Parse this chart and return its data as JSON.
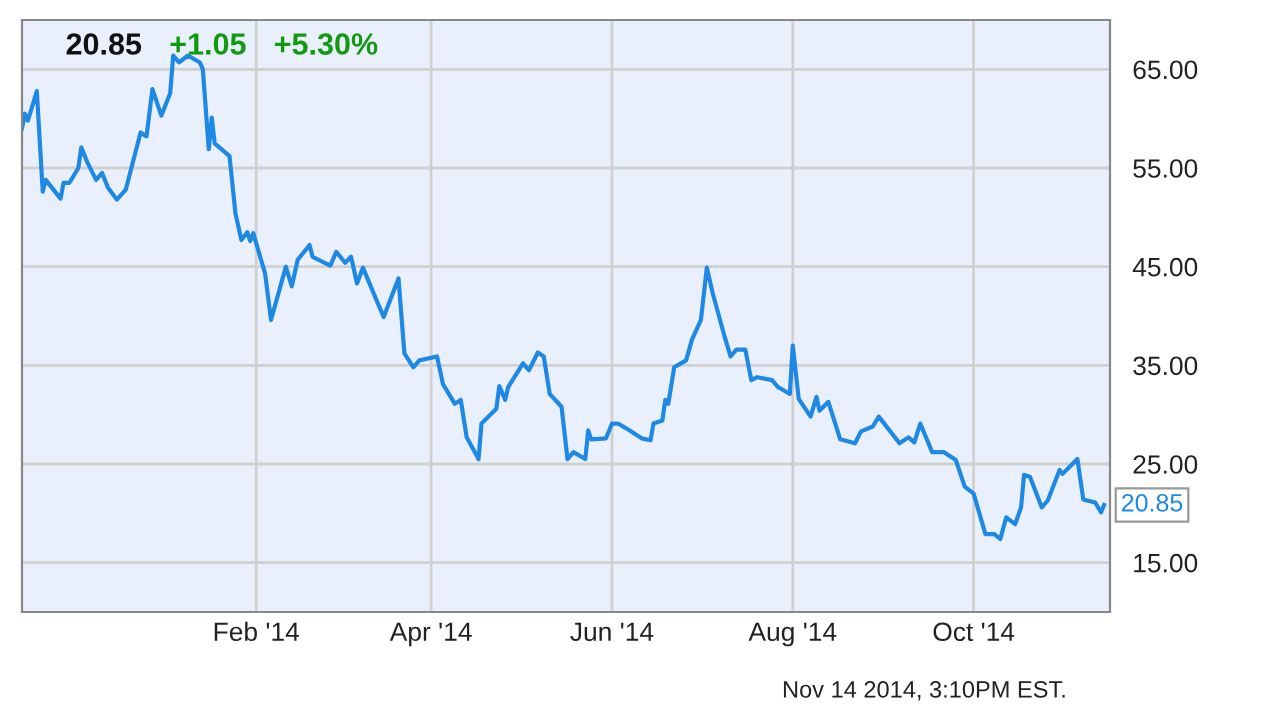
{
  "chart_data": {
    "type": "line",
    "x": [
      "2013-11-14",
      "2013-11-15",
      "2013-11-16",
      "2013-11-19",
      "2013-11-21",
      "2013-11-22",
      "2013-11-27",
      "2013-11-28",
      "2013-11-30",
      "2013-12-03",
      "2013-12-04",
      "2013-12-06",
      "2013-12-09",
      "2013-12-11",
      "2013-12-13",
      "2013-12-16",
      "2013-12-19",
      "2013-12-24",
      "2013-12-26",
      "2013-12-28",
      "2013-12-31",
      "2014-01-03",
      "2014-01-04",
      "2014-01-06",
      "2014-01-09",
      "2014-01-13",
      "2014-01-14",
      "2014-01-16",
      "2014-01-17",
      "2014-01-18",
      "2014-01-23",
      "2014-01-25",
      "2014-01-27",
      "2014-01-29",
      "2014-01-30",
      "2014-01-31",
      "2014-02-04",
      "2014-02-06",
      "2014-02-11",
      "2014-02-13",
      "2014-02-15",
      "2014-02-19",
      "2014-02-20",
      "2014-02-26",
      "2014-02-28",
      "2014-03-03",
      "2014-03-05",
      "2014-03-07",
      "2014-03-09",
      "2014-03-14",
      "2014-03-16",
      "2014-03-21",
      "2014-03-23",
      "2014-03-26",
      "2014-03-28",
      "2014-04-03",
      "2014-04-05",
      "2014-04-09",
      "2014-04-11",
      "2014-04-13",
      "2014-04-17",
      "2014-04-18",
      "2014-04-23",
      "2014-04-24",
      "2014-04-26",
      "2014-04-27",
      "2014-05-02",
      "2014-05-04",
      "2014-05-07",
      "2014-05-09",
      "2014-05-11",
      "2014-05-15",
      "2014-05-17",
      "2014-05-19",
      "2014-05-23",
      "2014-05-24",
      "2014-05-25",
      "2014-05-30",
      "2014-06-01",
      "2014-06-03",
      "2014-06-07",
      "2014-06-11",
      "2014-06-14",
      "2014-06-15",
      "2014-06-18",
      "2014-06-19",
      "2014-06-20",
      "2014-06-22",
      "2014-06-26",
      "2014-06-28",
      "2014-07-01",
      "2014-07-03",
      "2014-07-05",
      "2014-07-09",
      "2014-07-11",
      "2014-07-13",
      "2014-07-16",
      "2014-07-18",
      "2014-07-20",
      "2014-07-25",
      "2014-07-27",
      "2014-07-31",
      "2014-08-01",
      "2014-08-03",
      "2014-08-07",
      "2014-08-09",
      "2014-08-10",
      "2014-08-13",
      "2014-08-17",
      "2014-08-22",
      "2014-08-24",
      "2014-08-28",
      "2014-08-30",
      "2014-09-06",
      "2014-09-09",
      "2014-09-11",
      "2014-09-13",
      "2014-09-17",
      "2014-09-21",
      "2014-09-25",
      "2014-09-28",
      "2014-10-01",
      "2014-10-04",
      "2014-10-05",
      "2014-10-08",
      "2014-10-10",
      "2014-10-12",
      "2014-10-15",
      "2014-10-17",
      "2014-10-18",
      "2014-10-20",
      "2014-10-24",
      "2014-10-26",
      "2014-10-30",
      "2014-10-31",
      "2014-11-05",
      "2014-11-07",
      "2014-11-11",
      "2014-11-13",
      "2014-11-14"
    ],
    "series": [
      {
        "color": "#1e88e5",
        "values": [
          59.0,
          60.5,
          59.8,
          62.8,
          52.6,
          53.8,
          51.9,
          53.5,
          53.5,
          55.0,
          57.1,
          55.6,
          53.8,
          54.5,
          53.0,
          51.8,
          52.8,
          58.6,
          58.2,
          63.0,
          60.3,
          62.6,
          66.4,
          65.7,
          66.4,
          65.7,
          65.0,
          56.9,
          60.1,
          57.5,
          56.2,
          50.4,
          47.7,
          48.5,
          47.6,
          48.4,
          44.3,
          39.6,
          45.0,
          43.0,
          45.7,
          47.2,
          46.0,
          45.1,
          46.5,
          45.4,
          46.0,
          43.3,
          44.9,
          41.3,
          39.9,
          43.8,
          36.2,
          34.8,
          35.5,
          35.9,
          33.1,
          31.1,
          31.5,
          27.7,
          25.5,
          29.1,
          30.6,
          32.9,
          31.5,
          32.8,
          35.2,
          34.5,
          36.3,
          35.9,
          32.1,
          30.8,
          25.5,
          26.2,
          25.5,
          28.4,
          27.5,
          27.6,
          29.1,
          29.1,
          28.4,
          27.6,
          27.4,
          29.1,
          29.4,
          31.5,
          31.1,
          34.8,
          35.5,
          37.6,
          39.6,
          44.9,
          42.3,
          37.9,
          35.9,
          36.6,
          36.6,
          33.5,
          33.8,
          33.5,
          32.8,
          32.1,
          37.0,
          31.6,
          29.8,
          31.8,
          30.4,
          31.3,
          27.5,
          27.1,
          28.3,
          28.8,
          29.8,
          27.1,
          27.7,
          27.2,
          29.1,
          26.2,
          26.2,
          25.4,
          22.7,
          22.0,
          18.9,
          17.9,
          17.9,
          17.4,
          19.6,
          18.9,
          20.6,
          23.9,
          23.7,
          20.6,
          21.3,
          24.4,
          24.0,
          25.5,
          21.4,
          21.1,
          20.1,
          20.85
        ]
      }
    ],
    "xlim": [
      "2013-11-14",
      "2014-11-16"
    ],
    "xticks": [
      {
        "value": "2014-02-01",
        "label": "Feb '14"
      },
      {
        "value": "2014-04-01",
        "label": "Apr '14"
      },
      {
        "value": "2014-06-01",
        "label": "Jun '14"
      },
      {
        "value": "2014-08-01",
        "label": "Aug '14"
      },
      {
        "value": "2014-10-01",
        "label": "Oct '14"
      }
    ],
    "ylim": [
      10,
      70
    ],
    "yticks": [
      {
        "value": 15,
        "label": "15.00"
      },
      {
        "value": 25,
        "label": "25.00"
      },
      {
        "value": 35,
        "label": "35.00"
      },
      {
        "value": 45,
        "label": "45.00"
      },
      {
        "value": 55,
        "label": "55.00"
      },
      {
        "value": 65,
        "label": "65.00"
      }
    ],
    "grid": true,
    "annotations": [
      "20.85",
      "+1.05",
      "+5.30%",
      "Nov 14 2014, 3:10PM EST.",
      {
        "text": "20.85",
        "x": "2014-11-14",
        "y": 20.85
      }
    ]
  }
}
